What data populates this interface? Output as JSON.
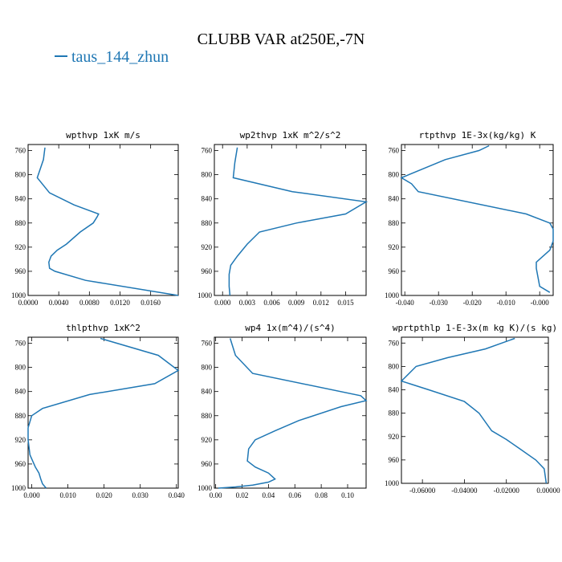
{
  "title": "CLUBB VAR at250E,-7N",
  "legend": {
    "label": "taus_144_zhun",
    "color": "#1f77b4"
  },
  "series_color": "#1f77b4",
  "chart_data": [
    {
      "type": "line",
      "title": "wpthvp  1xK m/s",
      "xlim": [
        0.0,
        0.0196
      ],
      "ylim": [
        1000,
        750
      ],
      "xticks": [
        0.0,
        0.004,
        0.008,
        0.012,
        0.016
      ],
      "xtick_labels": [
        "0.0000",
        "0.0040",
        "0.0080",
        "0.0120",
        "0.0160"
      ],
      "yticks": [
        760,
        800,
        840,
        880,
        920,
        960,
        1000
      ],
      "x": [
        0.0022,
        0.002,
        0.0012,
        0.0028,
        0.006,
        0.0092,
        0.009,
        0.0085,
        0.0068,
        0.005,
        0.0038,
        0.003,
        0.0027,
        0.0028,
        0.0035,
        0.0075,
        0.0196
      ],
      "y": [
        755,
        775,
        805,
        830,
        850,
        865,
        870,
        880,
        895,
        915,
        925,
        935,
        945,
        955,
        960,
        975,
        1000
      ]
    },
    {
      "type": "line",
      "title": "wp2thvp  1xK m^2/s^2",
      "xlim": [
        -0.001,
        0.0175
      ],
      "ylim": [
        1000,
        750
      ],
      "xticks": [
        0.0,
        0.003,
        0.006,
        0.009,
        0.012,
        0.015
      ],
      "xtick_labels": [
        "0.000",
        "0.003",
        "0.006",
        "0.009",
        "0.012",
        "0.015"
      ],
      "yticks": [
        760,
        800,
        840,
        880,
        920,
        960,
        1000
      ],
      "x": [
        0.0018,
        0.0015,
        0.0013,
        0.0085,
        0.0175,
        0.015,
        0.009,
        0.0045,
        0.003,
        0.0018,
        0.001,
        0.0008,
        0.0008,
        0.0009
      ],
      "y": [
        755,
        780,
        805,
        828,
        845,
        865,
        880,
        895,
        915,
        935,
        950,
        965,
        985,
        1000
      ]
    },
    {
      "type": "line",
      "title": "rtpthvp  1E-3x(kg/kg) K",
      "xlim": [
        -0.041,
        0.004
      ],
      "ylim": [
        1000,
        750
      ],
      "xticks": [
        -0.04,
        -0.03,
        -0.02,
        -0.01,
        0.0
      ],
      "xtick_labels": [
        "-0.040",
        "-0.030",
        "-0.020",
        "-0.010",
        "-0.000"
      ],
      "yticks": [
        760,
        800,
        840,
        880,
        920,
        960,
        1000
      ],
      "x": [
        -0.015,
        -0.018,
        -0.028,
        -0.041,
        -0.038,
        -0.036,
        -0.004,
        0.003,
        0.004,
        0.004,
        0.003,
        0.001,
        -0.001,
        -0.001,
        0.0,
        0.003
      ],
      "y": [
        752,
        760,
        775,
        805,
        815,
        828,
        865,
        880,
        890,
        910,
        925,
        935,
        945,
        955,
        985,
        995
      ]
    },
    {
      "type": "line",
      "title": "thlpthvp  1xK^2",
      "xlim": [
        -0.001,
        0.0405
      ],
      "ylim": [
        1000,
        750
      ],
      "xticks": [
        0.0,
        0.01,
        0.02,
        0.03,
        0.04
      ],
      "xtick_labels": [
        "0.000",
        "0.010",
        "0.020",
        "0.030",
        "0.040"
      ],
      "yticks": [
        760,
        800,
        840,
        880,
        920,
        960,
        1000
      ],
      "x": [
        0.019,
        0.035,
        0.0405,
        0.034,
        0.016,
        0.003,
        0.0,
        -0.001,
        -0.001,
        -0.0005,
        0.001,
        0.002,
        0.0025,
        0.003,
        0.004
      ],
      "y": [
        752,
        780,
        805,
        827,
        845,
        868,
        880,
        900,
        920,
        945,
        965,
        975,
        985,
        993,
        1000
      ]
    },
    {
      "type": "line",
      "title": "wp4  1x(m^4)/(s^4)",
      "xlim": [
        -0.001,
        0.114
      ],
      "ylim": [
        1000,
        750
      ],
      "xticks": [
        0.0,
        0.02,
        0.04,
        0.06,
        0.08,
        0.1
      ],
      "xtick_labels": [
        "0.00",
        "0.02",
        "0.04",
        "0.06",
        "0.08",
        "0.10"
      ],
      "yticks": [
        760,
        800,
        840,
        880,
        920,
        960,
        1000
      ],
      "x": [
        0.011,
        0.015,
        0.028,
        0.11,
        0.114,
        0.095,
        0.063,
        0.045,
        0.03,
        0.025,
        0.024,
        0.03,
        0.04,
        0.045,
        0.04,
        0.028,
        0.015,
        0.002
      ],
      "y": [
        752,
        780,
        810,
        847,
        855,
        865,
        888,
        905,
        920,
        935,
        955,
        965,
        975,
        985,
        990,
        995,
        998,
        1000
      ]
    },
    {
      "type": "line",
      "title": "wprtpthlp  1-E-3x(m kg K)/(s kg)",
      "xlim": [
        -0.07,
        0.0
      ],
      "ylim": [
        1000,
        750
      ],
      "xticks": [
        -0.06,
        -0.04,
        -0.02,
        0.0
      ],
      "xtick_labels": [
        "-0.06000",
        "-0.04000",
        "-0.02000",
        "0.00000"
      ],
      "yticks": [
        760,
        800,
        840,
        880,
        920,
        960,
        1000
      ],
      "x": [
        -0.016,
        -0.03,
        -0.048,
        -0.063,
        -0.07,
        -0.057,
        -0.04,
        -0.033,
        -0.027,
        -0.02,
        -0.014,
        -0.006,
        -0.002,
        -0.001
      ],
      "y": [
        752,
        770,
        785,
        800,
        825,
        840,
        860,
        880,
        910,
        925,
        940,
        960,
        975,
        1000
      ]
    }
  ]
}
